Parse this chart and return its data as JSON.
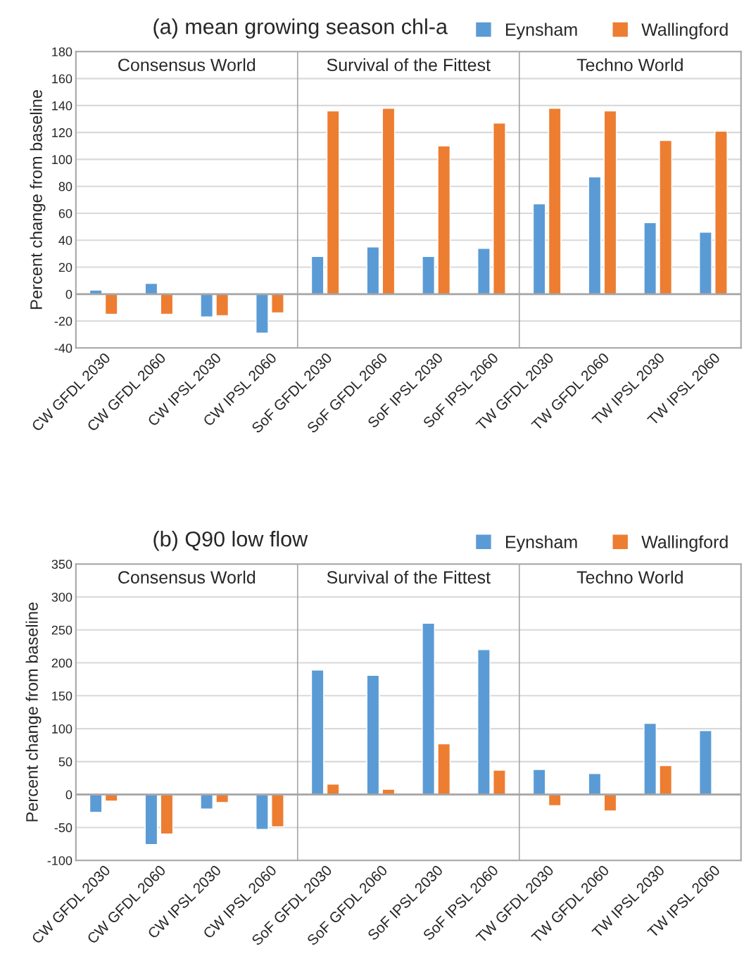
{
  "chart_data": [
    {
      "type": "bar",
      "title": "(a) mean growing season chl-a",
      "ylabel": "Percent change from baseline",
      "categories": [
        "CW GFDL 2030",
        "CW GFDL 2060",
        "CW IPSL 2030",
        "CW IPSL 2060",
        "SoF GFDL 2030",
        "SoF GFDL 2060",
        "SoF IPSL 2030",
        "SoF IPSL 2060",
        "TW GFDL 2030",
        "TW GFDL 2060",
        "TW IPSL 2030",
        "TW IPSL 2060"
      ],
      "series": [
        {
          "name": "Eynsham",
          "color": "#5b9bd5",
          "values": [
            3,
            8,
            -17,
            -29,
            28,
            35,
            28,
            34,
            67,
            87,
            53,
            46
          ]
        },
        {
          "name": "Wallingford",
          "color": "#ed7d31",
          "values": [
            -15,
            -15,
            -16,
            -14,
            136,
            138,
            110,
            127,
            138,
            136,
            114,
            121
          ]
        }
      ],
      "ylim": [
        -40,
        180
      ],
      "yticks": [
        -40,
        -20,
        0,
        20,
        40,
        60,
        80,
        100,
        120,
        140,
        160,
        180
      ],
      "annotations": [
        "Consensus World",
        "Survival of the Fittest",
        "Techno World"
      ],
      "grid": "y",
      "legend": "top right"
    },
    {
      "type": "bar",
      "title": "(b) Q90 low flow",
      "ylabel": "Percent change from baseline",
      "categories": [
        "CW GFDL 2030",
        "CW GFDL 2060",
        "CW IPSL 2030",
        "CW IPSL 2060",
        "SoF GFDL 2030",
        "SoF GFDL 2060",
        "SoF IPSL 2030",
        "SoF IPSL 2060",
        "TW GFDL 2030",
        "TW GFDL 2060",
        "TW IPSL 2030",
        "TW IPSL 2060"
      ],
      "series": [
        {
          "name": "Eynsham",
          "color": "#5b9bd5",
          "values": [
            -27,
            -76,
            -22,
            -53,
            189,
            181,
            260,
            220,
            38,
            32,
            108,
            97
          ]
        },
        {
          "name": "Wallingford",
          "color": "#ed7d31",
          "values": [
            -10,
            -60,
            -12,
            -49,
            16,
            8,
            77,
            37,
            -17,
            -25,
            44,
            null
          ]
        }
      ],
      "ylim": [
        -100,
        350
      ],
      "yticks": [
        -100,
        -50,
        0,
        50,
        100,
        150,
        200,
        250,
        300,
        350
      ],
      "annotations": [
        "Consensus World",
        "Survival of the Fittest",
        "Techno World"
      ],
      "grid": "y",
      "legend": "top right"
    }
  ]
}
